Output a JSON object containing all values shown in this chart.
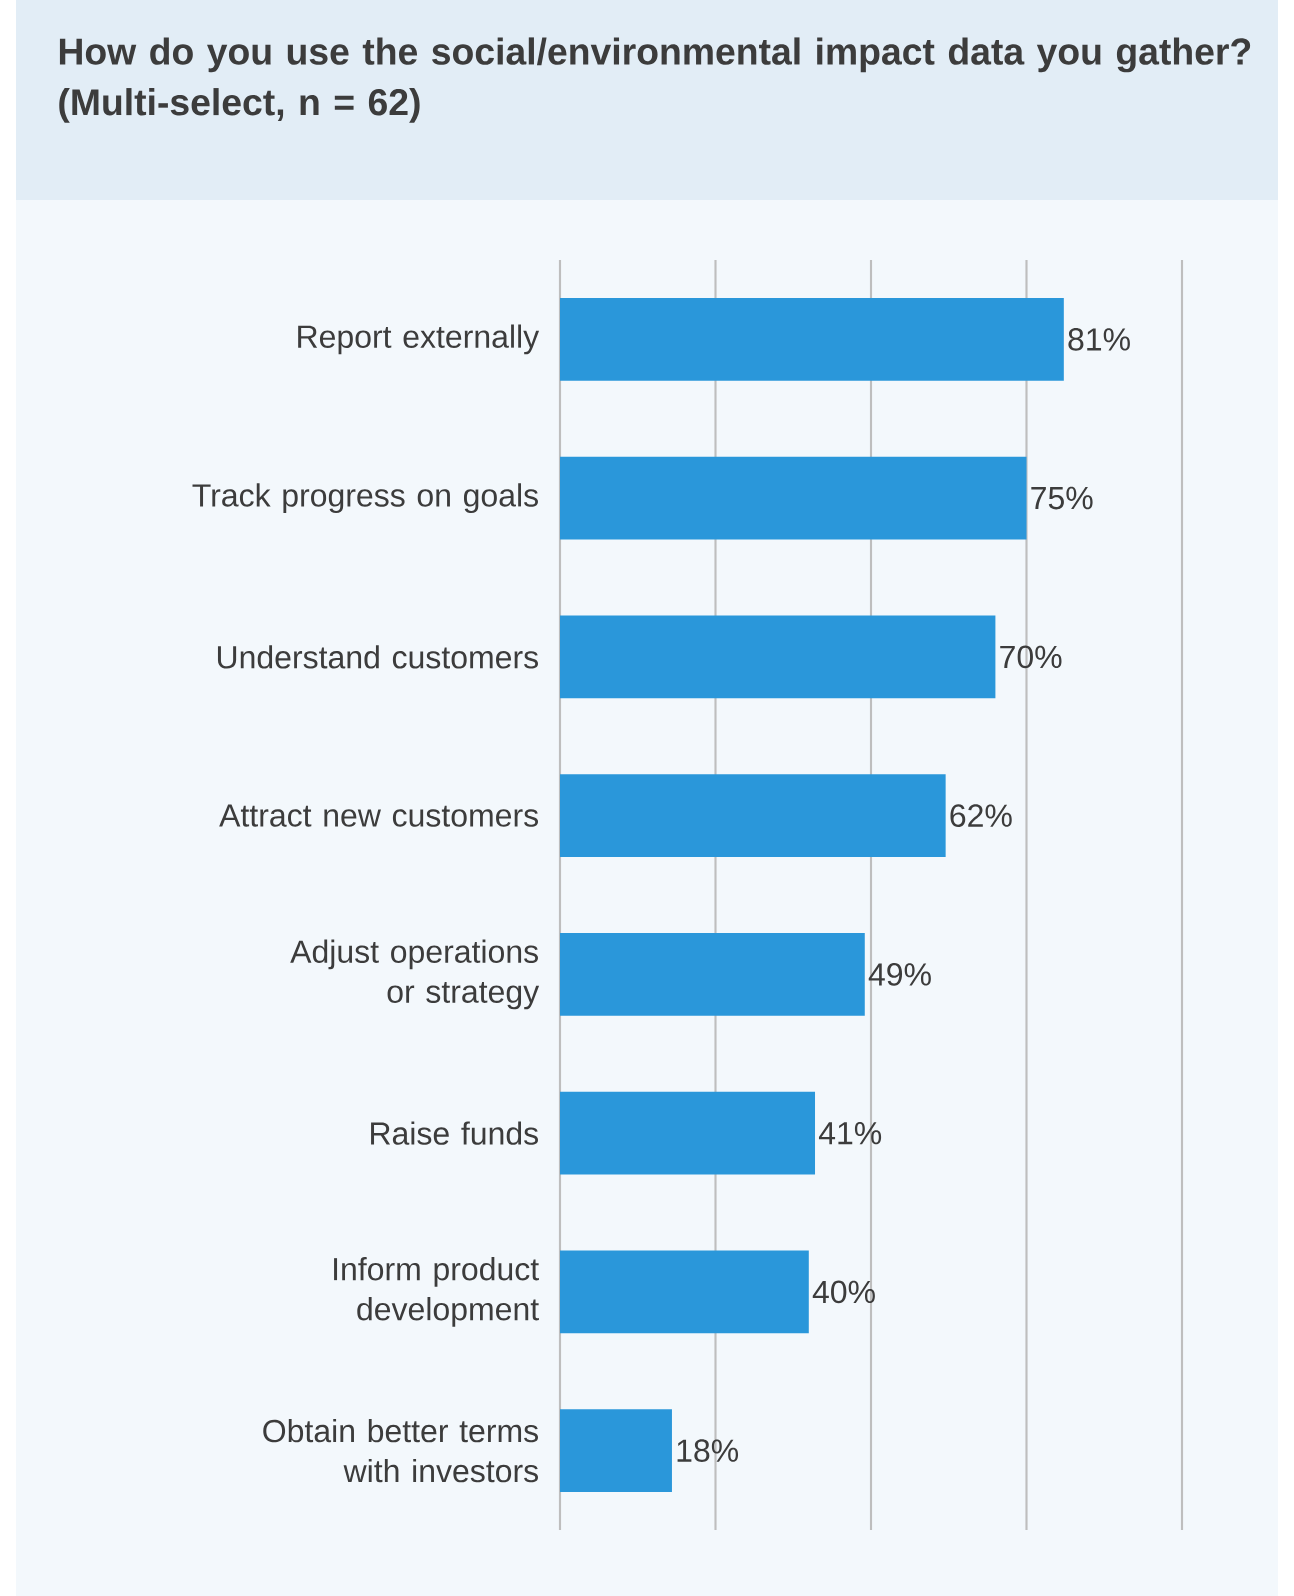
{
  "chart_data": {
    "type": "bar",
    "orientation": "horizontal",
    "title": "How do you use the social/environmental impact data you gather? (Multi-select, n = 62)",
    "categories": [
      "Report externally",
      "Track progress on goals",
      "Understand customers",
      "Attract new customers",
      "Adjust operations or strategy",
      "Raise funds",
      "Inform product development",
      "Obtain better terms with investors"
    ],
    "values": [
      81,
      75,
      70,
      62,
      49,
      41,
      40,
      18
    ],
    "value_labels": [
      "81%",
      "75%",
      "70%",
      "62%",
      "49%",
      "41%",
      "40%",
      "18%"
    ],
    "color": "#2a97da",
    "xlim": [
      0,
      100
    ],
    "xticks": [
      {
        "value": 0,
        "label": null
      },
      {
        "value": 25,
        "label": null
      },
      {
        "value": 50,
        "label": null
      },
      {
        "value": 75,
        "label": null
      },
      {
        "value": 100,
        "label": null
      }
    ],
    "grid": "x",
    "tick_labels": "y"
  }
}
